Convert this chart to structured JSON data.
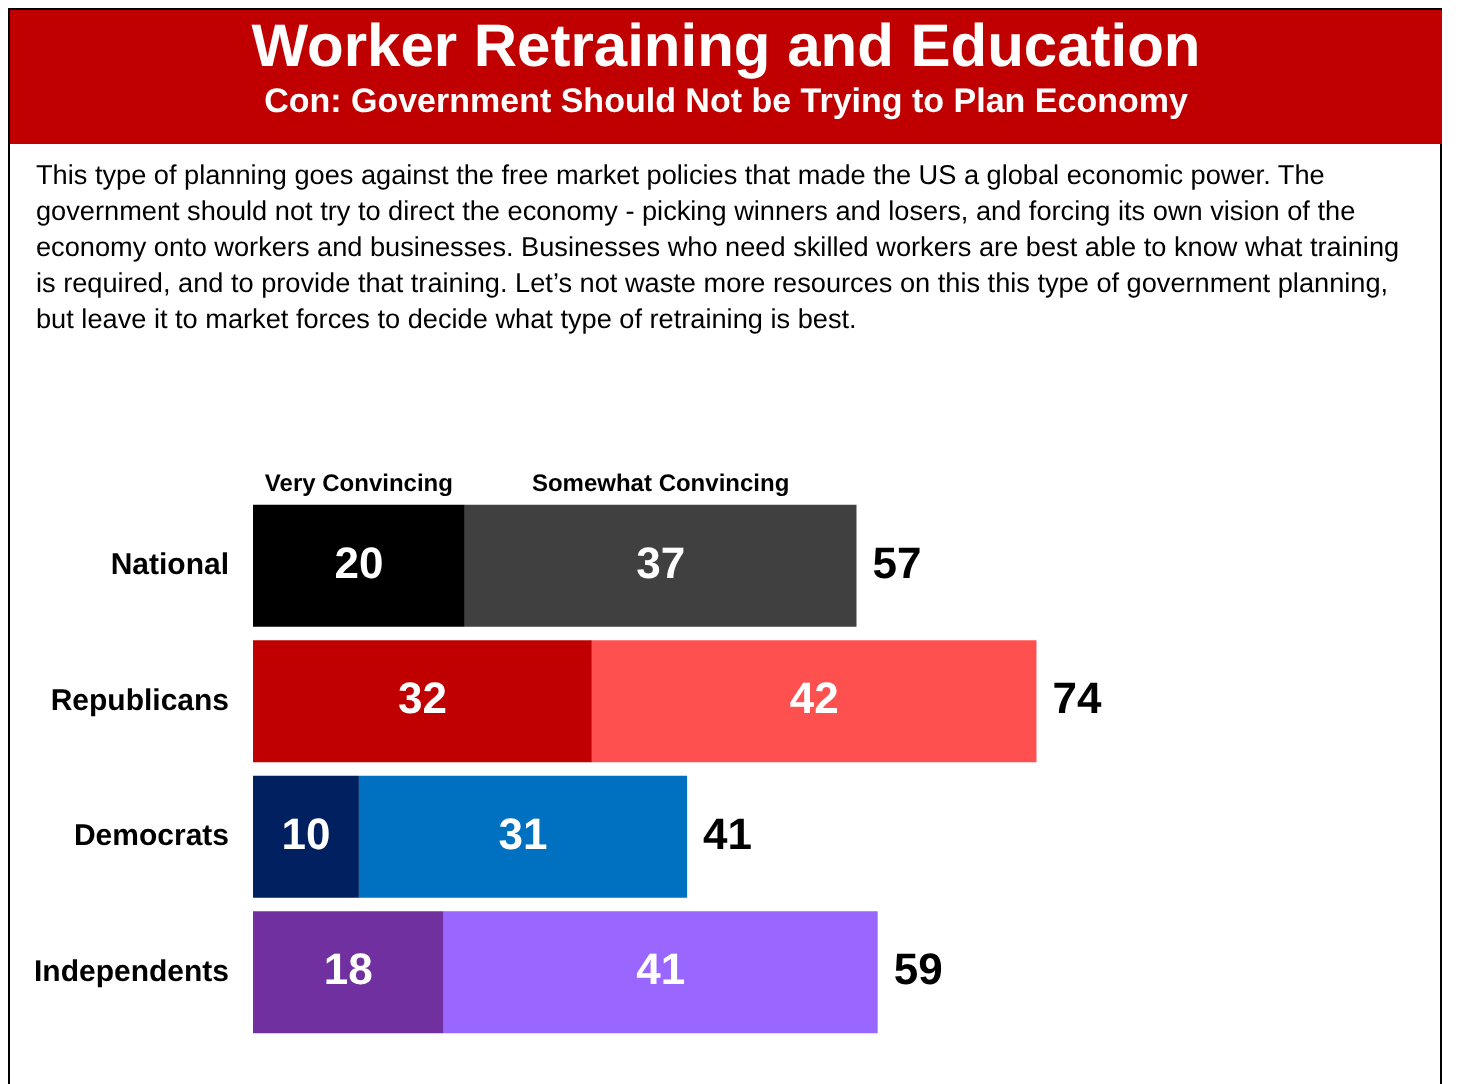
{
  "chart_data": {
    "type": "bar",
    "orientation": "horizontal",
    "stacked": true,
    "title": "Worker Retraining and Education",
    "subtitle": "Con: Government Should Not be Trying to Plan Economy",
    "annotations": [
      "This type of planning goes against the free market policies that made the US a global economic power. The government should not try to direct the economy - picking winners and losers, and forcing its own vision of the economy onto workers and businesses. Businesses who need skilled workers are best able to know what training is required, and to provide that training. Let’s not waste more resources on this this type of government planning, but leave it to market forces to decide what type of retraining is best."
    ],
    "categories": [
      "National",
      "Republicans",
      "Democrats",
      "Independents"
    ],
    "series": [
      {
        "name": "Very Convincing",
        "colors": [
          "#000000",
          "#c00000",
          "#002060",
          "#7030a0"
        ],
        "values": [
          20,
          32,
          10,
          18
        ]
      },
      {
        "name": "Somewhat Convincing",
        "colors": [
          "#404040",
          "#ff5050",
          "#0070c0",
          "#9966ff"
        ],
        "values": [
          37,
          42,
          31,
          41
        ]
      }
    ],
    "totals": [
      "57",
      "74",
      "41",
      "59"
    ],
    "data_labels": true,
    "tick_labels": "y",
    "grid": false,
    "legend": false
  }
}
